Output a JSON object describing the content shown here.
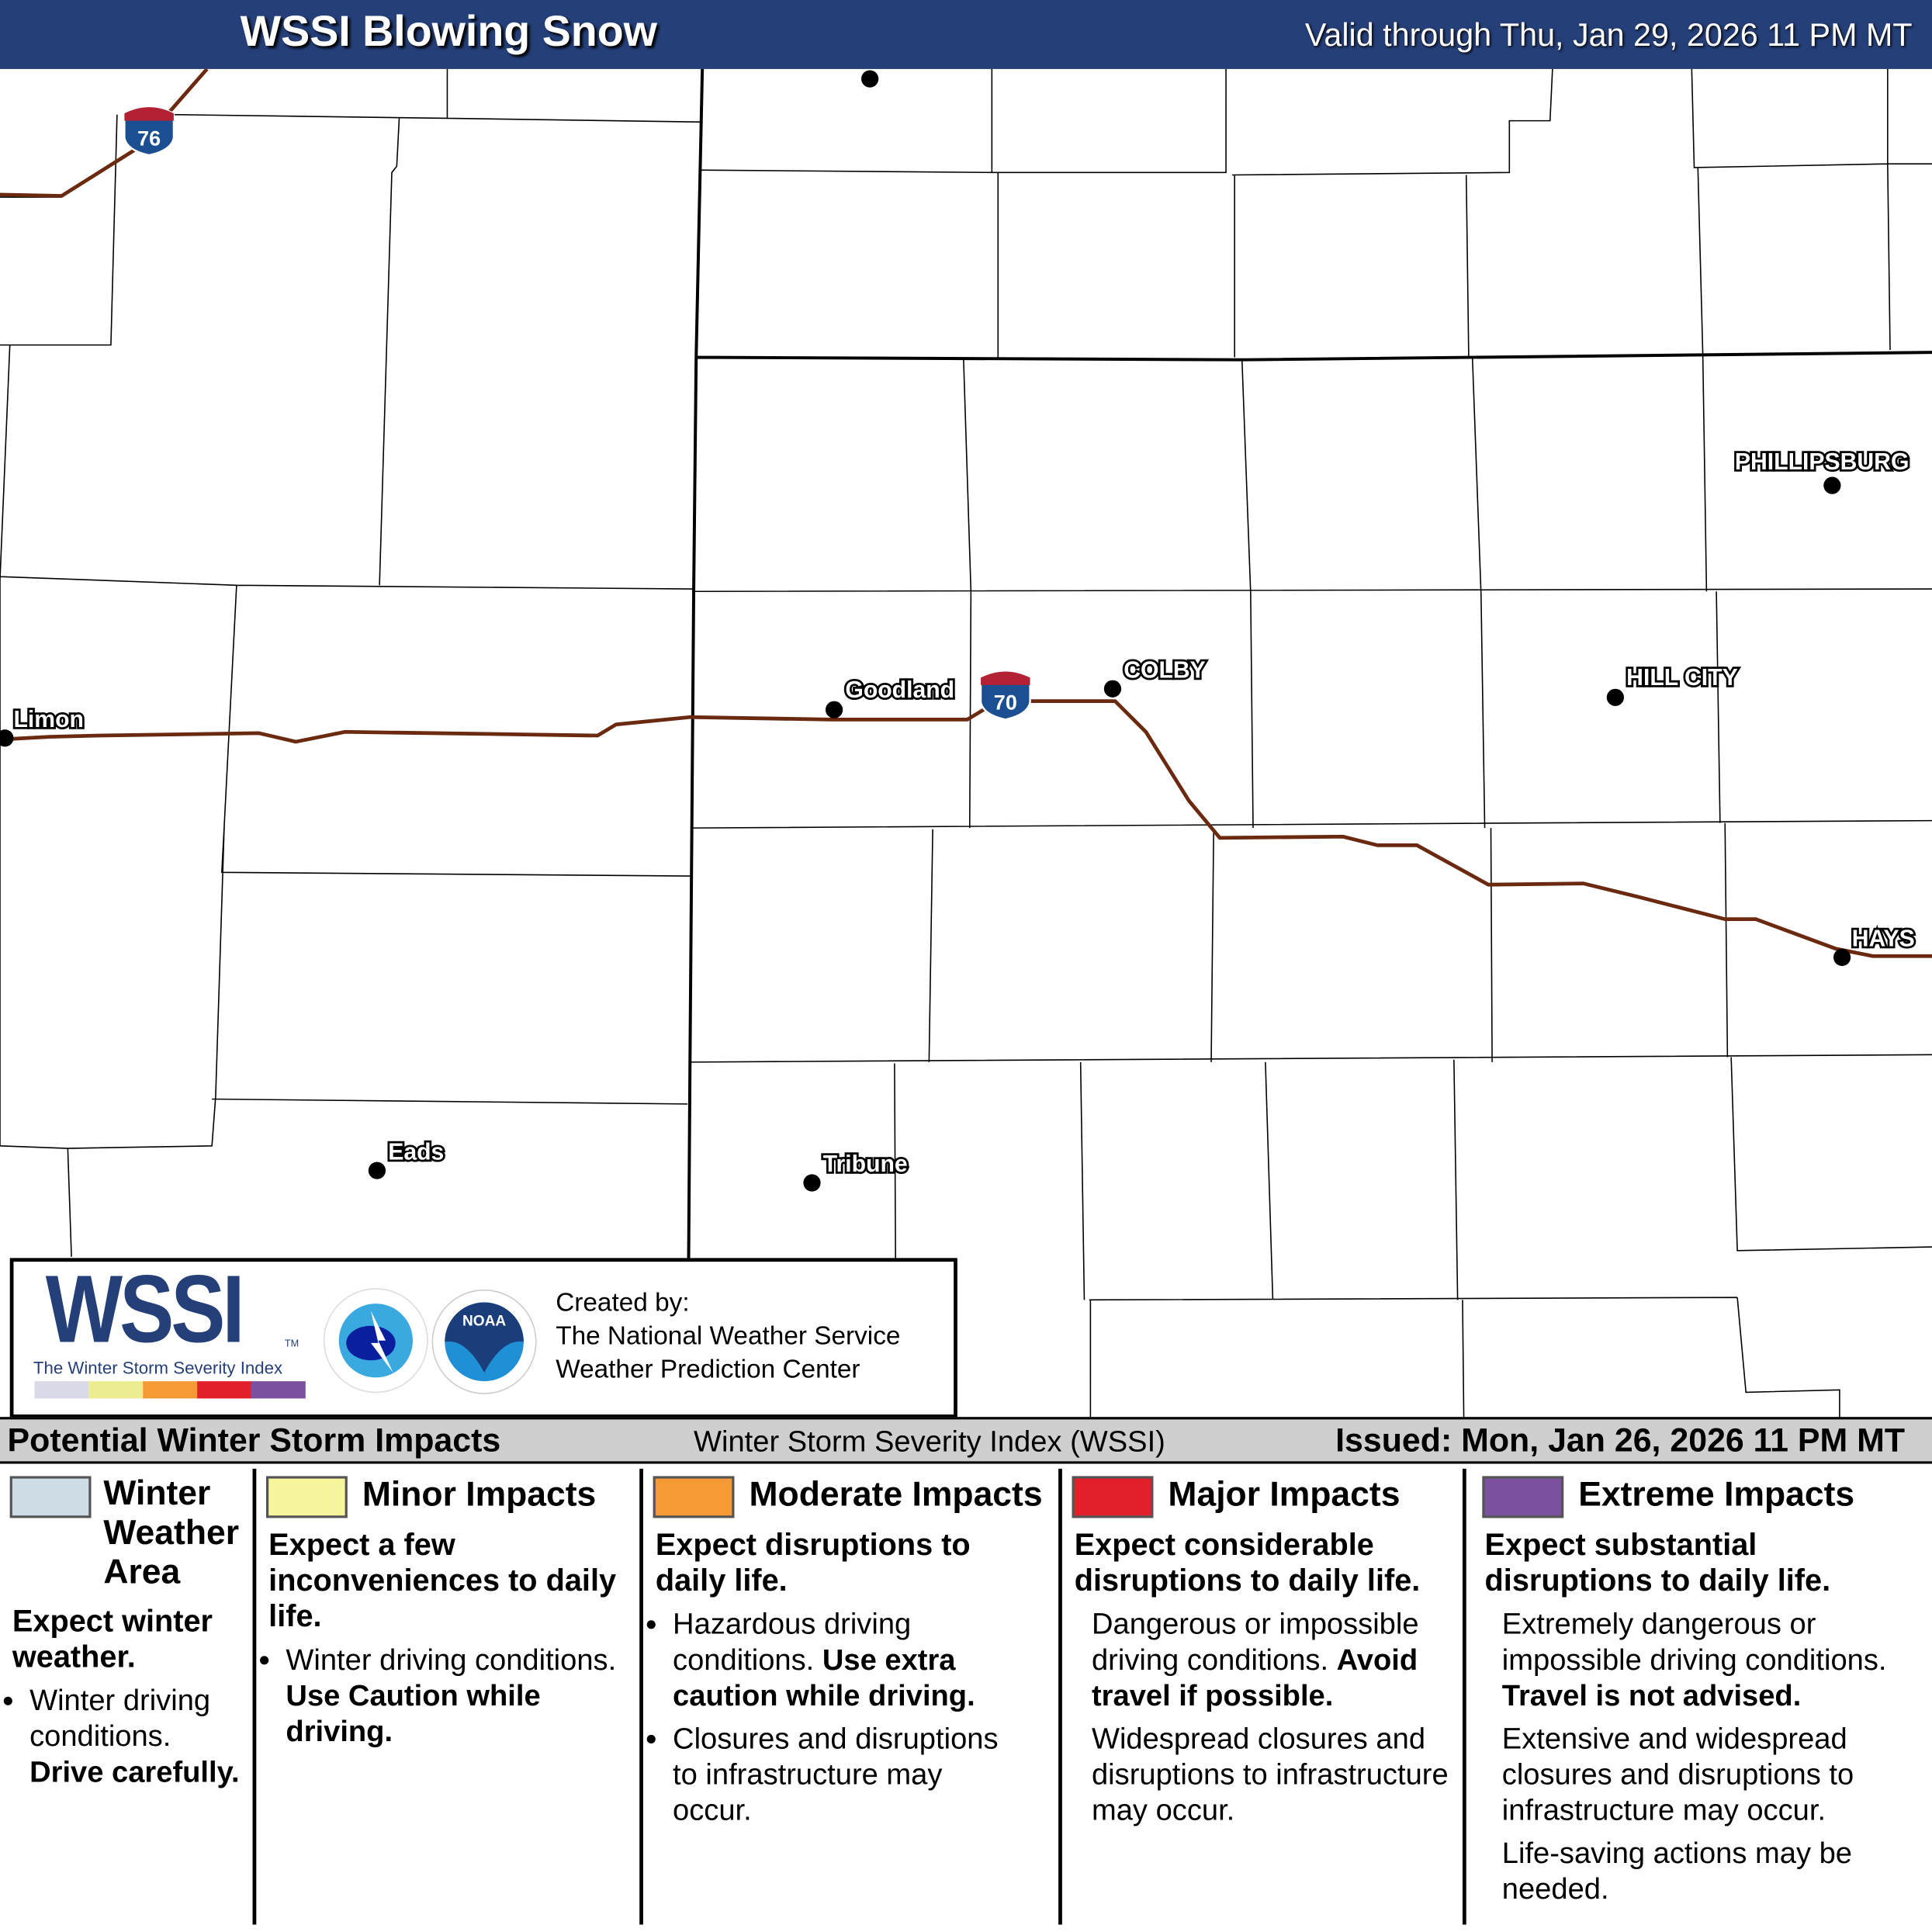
{
  "header": {
    "title": "WSSI Blowing Snow",
    "valid": "Valid through Thu, Jan 29, 2026 11 PM MT"
  },
  "map": {
    "cities": [
      "Limon",
      "Goodland",
      "COLBY",
      "HILL CITY",
      "PHILLIPSBURG",
      "HAYS",
      "Eads",
      "Tribune"
    ],
    "highways": [
      "76",
      "70"
    ],
    "colors": {
      "highway": "#6b2a10",
      "shield_blue": "#1b4f91",
      "shield_red": "#b22234"
    }
  },
  "logo": {
    "wssi": "WSSI",
    "tm": "TM",
    "subtitle": "The Winter Storm Severity Index",
    "nws": "NATIONAL WEATHER SERVICE",
    "noaa": "NOAA",
    "created_by": "Created by:",
    "org1": "The National Weather Service",
    "org2": "Weather Prediction Center",
    "bar_colors": [
      "#d9d9e8",
      "#ecec90",
      "#f59a35",
      "#e3202a",
      "#7b519f"
    ]
  },
  "legend": {
    "title": "Potential Winter Storm Impacts",
    "center": "Winter Storm Severity Index (WSSI)",
    "issued": "Issued: Mon, Jan 26, 2026 11 PM MT",
    "categories": [
      {
        "label": "Winter Weather Area",
        "color": "#cfdde6",
        "lead": "Expect winter weather.",
        "b1": "Winter driving conditions.",
        "b1b": "Drive carefully."
      },
      {
        "label": "Minor Impacts",
        "color": "#f7f59e",
        "lead": "Expect a few inconveniences to daily life.",
        "b1": "Winter driving conditions.",
        "b1b": "Use Caution while driving."
      },
      {
        "label": "Moderate Impacts",
        "color": "#f59a35",
        "lead": "Expect disruptions to daily life.",
        "b1": "Hazardous driving conditions.",
        "b1b": "Use extra caution while driving.",
        "b2": "Closures and disruptions to infrastructure may occur."
      },
      {
        "label": "Major Impacts",
        "color": "#e3202a",
        "lead": "Expect considerable disruptions to daily life.",
        "b1": "Dangerous or impossible driving conditions.",
        "b1b": "Avoid travel if possible.",
        "b2": "Widespread closures and disruptions to infrastructure may occur."
      },
      {
        "label": "Extreme Impacts",
        "color": "#7b519f",
        "lead": "Expect substantial disruptions to daily life.",
        "b1": "Extremely dangerous or impossible driving conditions.",
        "b1b": "Travel is not advised.",
        "b2": "Extensive and widespread closures and disruptions to infrastructure may occur.",
        "b3": "Life-saving actions may be needed."
      }
    ]
  }
}
